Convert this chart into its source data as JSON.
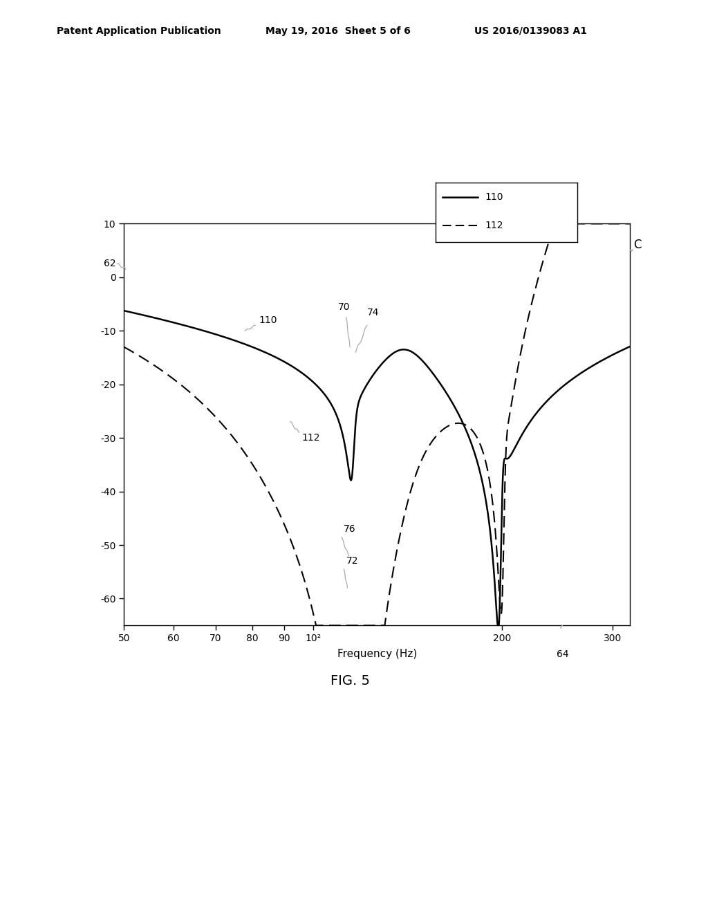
{
  "header_left": "Patent Application Publication",
  "header_mid": "May 19, 2016  Sheet 5 of 6",
  "header_right": "US 2016/0139083 A1",
  "xlabel": "Frequency (Hz)",
  "xlim_log": [
    50,
    320
  ],
  "ylim": [
    -65,
    10
  ],
  "yticks": [
    10,
    0,
    -10,
    -20,
    -30,
    -40,
    -50,
    -60
  ],
  "xtick_vals": [
    50,
    60,
    70,
    80,
    90,
    100,
    200,
    300
  ],
  "xtick_labels": [
    "50",
    "60",
    "70",
    "80",
    "90",
    "10²",
    "200",
    "300"
  ],
  "legend_labels": [
    "110",
    "112"
  ],
  "fig_label": "FIG. 5",
  "background_color": "#ffffff"
}
